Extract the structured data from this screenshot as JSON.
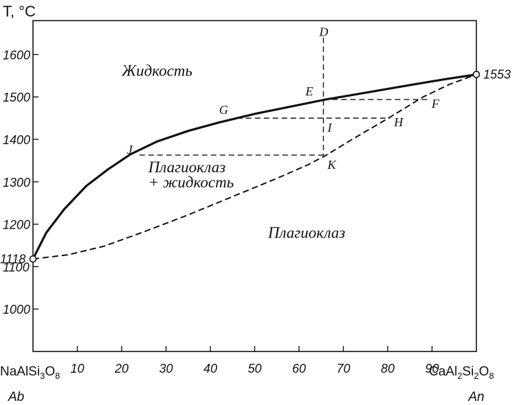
{
  "chart_data": {
    "type": "line",
    "title": "",
    "ylabel": "T, °C",
    "xlabel": "",
    "xlim": [
      0,
      100
    ],
    "ylim": [
      900,
      1680
    ],
    "xticks": [
      10,
      20,
      30,
      40,
      50,
      60,
      70,
      80,
      90
    ],
    "xtick_labels": [
      "10",
      "20",
      "30",
      "40",
      "50",
      "60",
      "70",
      "80",
      "90"
    ],
    "yticks": [
      1000,
      1100,
      1200,
      1300,
      1400,
      1500,
      1600
    ],
    "ytick_labels": [
      "1000",
      "1100",
      "1200",
      "1300",
      "1400",
      "1500",
      "1600"
    ],
    "x_end_labels": {
      "left_formula": {
        "base": "NaAlSi",
        "s1": "3",
        "mid": "O",
        "s2": "8"
      },
      "right_formula": {
        "p1": "CaAl",
        "s1": "2",
        "p2": "Si",
        "s2": "2",
        "p3": "O",
        "s3": "8"
      },
      "left_abbr": "Ab",
      "right_abbr": "An"
    },
    "end_points": [
      {
        "label": "1118",
        "x": 0,
        "y": 1118
      },
      {
        "label": "1553",
        "x": 100,
        "y": 1553
      }
    ],
    "series": [
      {
        "key": "liquidus",
        "style": "solid",
        "points": [
          [
            0,
            1118
          ],
          [
            3,
            1180
          ],
          [
            7,
            1235
          ],
          [
            12,
            1290
          ],
          [
            17,
            1330
          ],
          [
            22,
            1365
          ],
          [
            28,
            1395
          ],
          [
            35,
            1420
          ],
          [
            42,
            1440
          ],
          [
            50,
            1460
          ],
          [
            58,
            1477
          ],
          [
            66,
            1494
          ],
          [
            75,
            1510
          ],
          [
            85,
            1528
          ],
          [
            93,
            1542
          ],
          [
            100,
            1553
          ]
        ]
      },
      {
        "key": "solidus",
        "style": "dashed",
        "points": [
          [
            0,
            1118
          ],
          [
            8,
            1128
          ],
          [
            16,
            1148
          ],
          [
            25,
            1182
          ],
          [
            35,
            1222
          ],
          [
            45,
            1265
          ],
          [
            55,
            1308
          ],
          [
            62,
            1340
          ],
          [
            66,
            1362
          ],
          [
            72,
            1400
          ],
          [
            80,
            1449
          ],
          [
            88,
            1500
          ],
          [
            94,
            1530
          ],
          [
            100,
            1553
          ]
        ]
      }
    ],
    "guide_lines": [
      {
        "from": [
          65.5,
          1640
        ],
        "to": [
          65.5,
          1362
        ]
      },
      {
        "from": [
          65.5,
          1494
        ],
        "to": [
          89,
          1494
        ]
      },
      {
        "from": [
          46,
          1450
        ],
        "to": [
          80.5,
          1450
        ]
      },
      {
        "from": [
          24,
          1363
        ],
        "to": [
          65.5,
          1363
        ]
      }
    ],
    "point_labels": [
      {
        "text": "D",
        "x": 65.5,
        "y": 1640
      },
      {
        "text": "E",
        "x": 65.5,
        "y": 1494
      },
      {
        "text": "F",
        "x": 89,
        "y": 1494
      },
      {
        "text": "G",
        "x": 46,
        "y": 1450
      },
      {
        "text": "I",
        "x": 65.5,
        "y": 1450
      },
      {
        "text": "H",
        "x": 80.5,
        "y": 1450
      },
      {
        "text": "J",
        "x": 24,
        "y": 1363
      },
      {
        "text": "K",
        "x": 65.5,
        "y": 1363
      }
    ],
    "region_labels": [
      {
        "text": "Жидкость",
        "x": 20,
        "y": 1550
      },
      {
        "text": "Плагиоклаз",
        "x": 26,
        "y": 1322
      },
      {
        "text": "+ жидкость",
        "x": 26,
        "y": 1287
      },
      {
        "text": "Плагиоклаз",
        "x": 53,
        "y": 1168
      }
    ]
  }
}
